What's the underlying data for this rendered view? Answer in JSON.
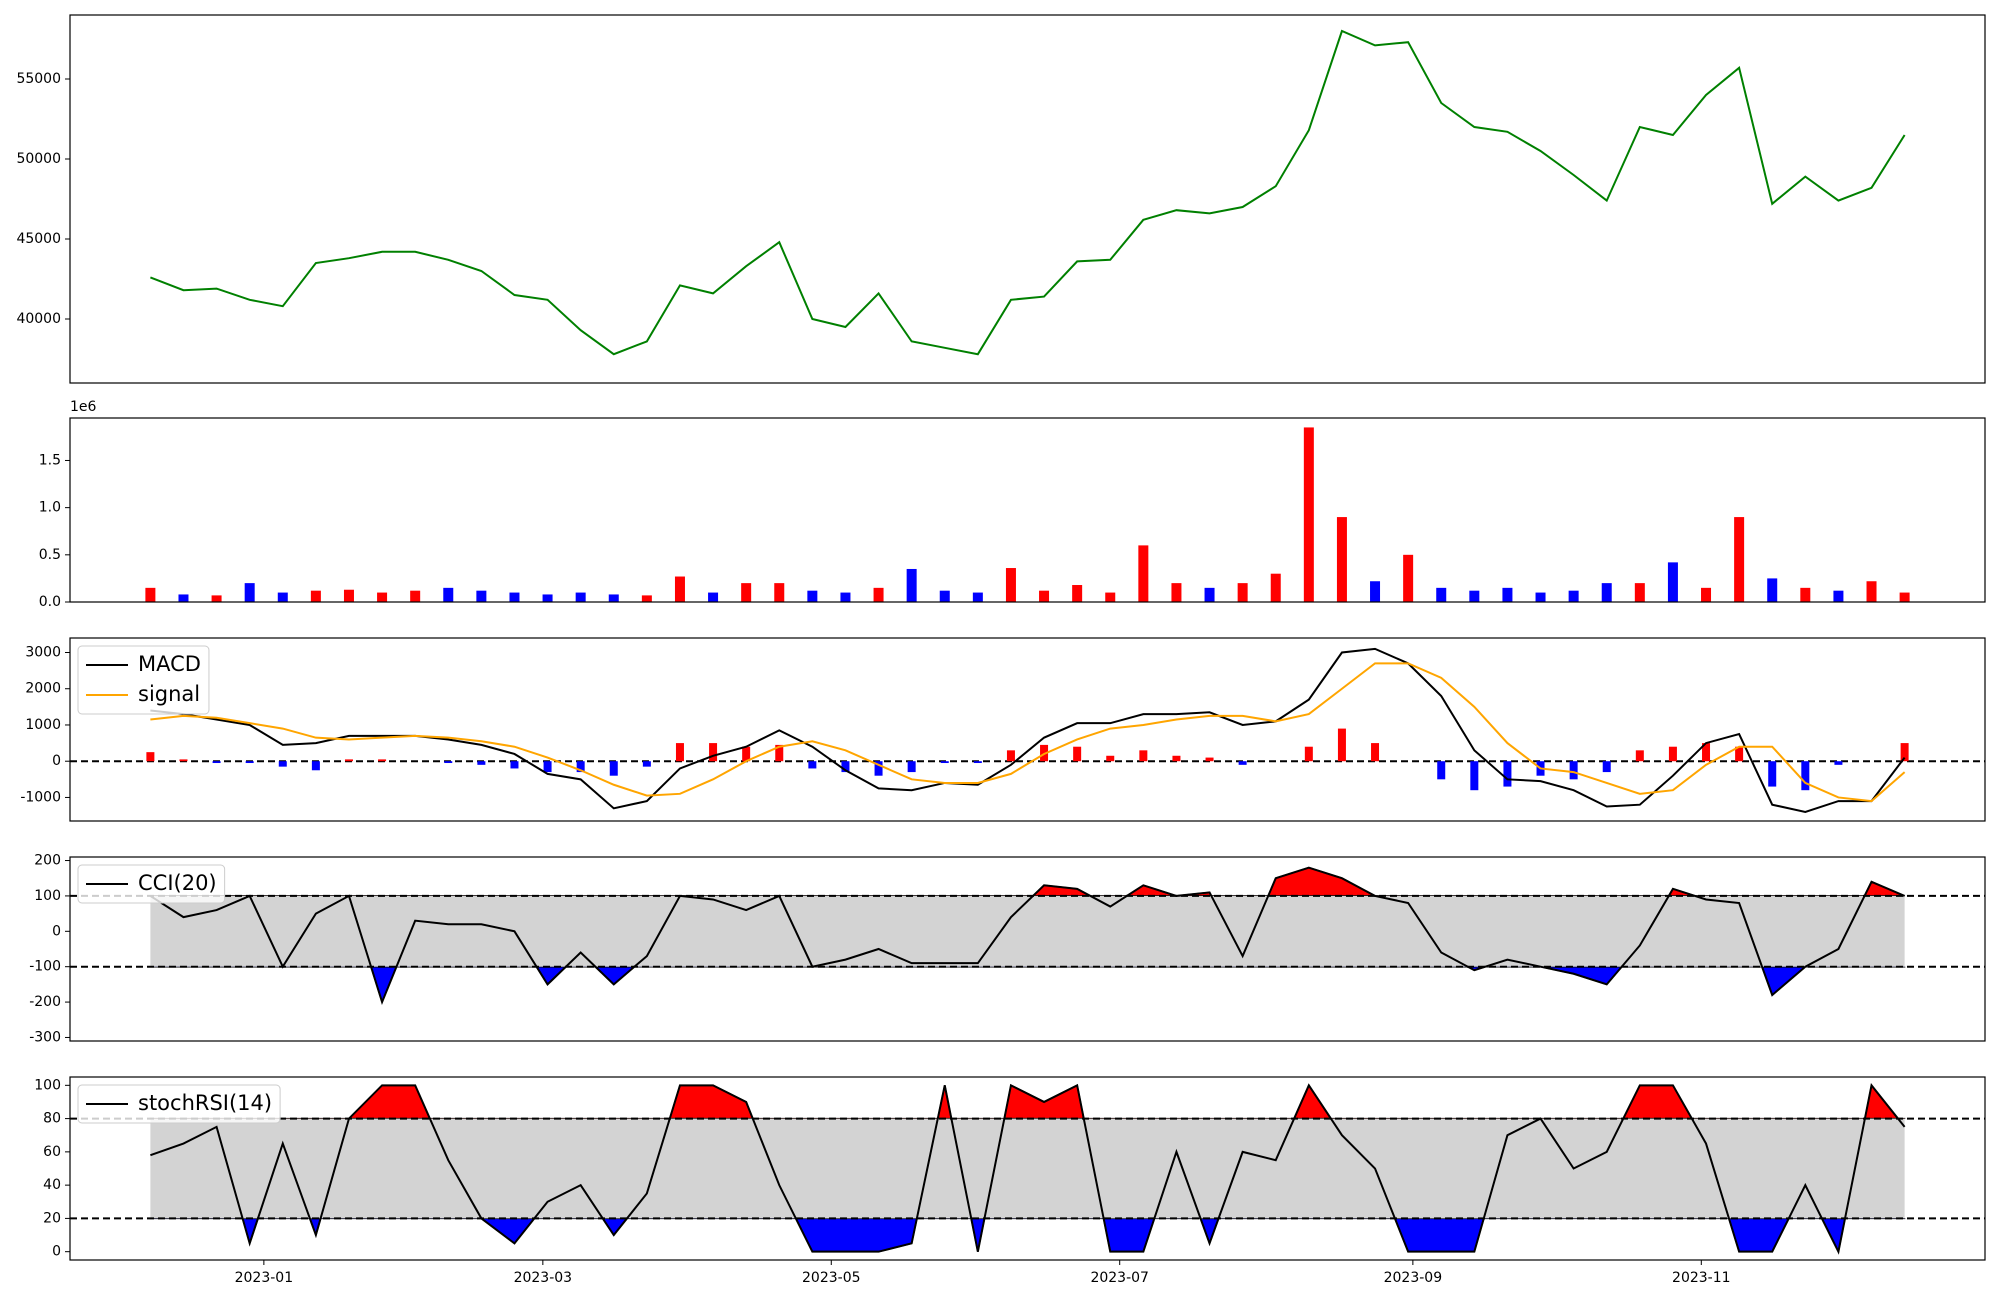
{
  "chart_data": [
    {
      "type": "line",
      "x": [
        "2022-12-08",
        "2022-12-15",
        "2022-12-22",
        "2022-12-29",
        "2023-01-05",
        "2023-01-12",
        "2023-01-19",
        "2023-01-26",
        "2023-02-02",
        "2023-02-09",
        "2023-02-16",
        "2023-02-23",
        "2023-03-02",
        "2023-03-09",
        "2023-03-16",
        "2023-03-23",
        "2023-03-30",
        "2023-04-06",
        "2023-04-13",
        "2023-04-20",
        "2023-04-27",
        "2023-05-04",
        "2023-05-11",
        "2023-05-18",
        "2023-05-25",
        "2023-06-01",
        "2023-06-08",
        "2023-06-15",
        "2023-06-22",
        "2023-06-29",
        "2023-07-06",
        "2023-07-13",
        "2023-07-20",
        "2023-07-27",
        "2023-08-03",
        "2023-08-10",
        "2023-08-17",
        "2023-08-24",
        "2023-08-31",
        "2023-09-07",
        "2023-09-14",
        "2023-09-21",
        "2023-09-28",
        "2023-10-05",
        "2023-10-12",
        "2023-10-19",
        "2023-10-26",
        "2023-11-02",
        "2023-11-09",
        "2023-11-16",
        "2023-11-23",
        "2023-11-30",
        "2023-12-07",
        "2023-12-14"
      ],
      "xlim": [
        "2022-11-21",
        "2023-12-31"
      ],
      "ylim": [
        36000,
        59000
      ],
      "yticks": [
        40000,
        45000,
        50000,
        55000
      ],
      "series": [
        {
          "color": "green",
          "values": [
            42600,
            41800,
            41900,
            41200,
            40800,
            43500,
            43800,
            44200,
            44200,
            43700,
            43000,
            41500,
            41200,
            39300,
            37800,
            38600,
            42100,
            41600,
            43300,
            44800,
            40000,
            39500,
            41600,
            38600,
            38200,
            37800,
            41200,
            41400,
            43600,
            43700,
            46200,
            46800,
            46600,
            47000,
            48300,
            51800,
            58000,
            57100,
            57300,
            53500,
            52000,
            51700,
            50500,
            49000,
            47400,
            52000,
            51500,
            54000,
            55700,
            47200,
            48900,
            47400,
            48200,
            51500
          ]
        }
      ]
    },
    {
      "type": "bar",
      "offset_label": "1e6",
      "up_color": "red",
      "down_color": "blue",
      "ylim": [
        0,
        1.95
      ],
      "yticks": [
        {
          "value": 0,
          "label": "0.0"
        },
        0.5,
        {
          "value": 1,
          "label": "1.0"
        },
        1.5
      ],
      "values": [
        0.15,
        0.08,
        0.07,
        0.2,
        0.1,
        0.12,
        0.13,
        0.1,
        0.12,
        0.15,
        0.12,
        0.1,
        0.08,
        0.1,
        0.08,
        0.07,
        0.27,
        0.1,
        0.2,
        0.2,
        0.12,
        0.1,
        0.15,
        0.35,
        0.12,
        0.1,
        0.36,
        0.12,
        0.18,
        0.1,
        0.6,
        0.2,
        0.15,
        0.2,
        0.3,
        1.85,
        0.9,
        0.22,
        0.5,
        0.15,
        0.12,
        0.15,
        0.1,
        0.12,
        0.2,
        0.2,
        0.42,
        0.15,
        0.9,
        0.25,
        0.15,
        0.12,
        0.22,
        0.1
      ]
    },
    {
      "type": "line",
      "legend": "upper left",
      "ylim": [
        -1650,
        3400
      ],
      "yticks": [
        -1000,
        0,
        1000,
        2000,
        3000
      ],
      "hlines": [
        0
      ],
      "series": [
        {
          "name": "MACD",
          "color": "black",
          "values": [
            1400,
            1300,
            1150,
            1000,
            450,
            500,
            700,
            700,
            700,
            600,
            450,
            200,
            -350,
            -500,
            -1300,
            -1100,
            -200,
            150,
            400,
            850,
            400,
            -250,
            -750,
            -800,
            -600,
            -650,
            -100,
            650,
            1050,
            1050,
            1300,
            1300,
            1350,
            1000,
            1100,
            1700,
            3000,
            3100,
            2700,
            1800,
            300,
            -500,
            -550,
            -800,
            -1250,
            -1200,
            -400,
            500,
            750,
            -1200,
            -1400,
            -1100,
            -1100,
            100
          ]
        },
        {
          "name": "signal",
          "color": "orange",
          "values": [
            1150,
            1250,
            1200,
            1050,
            900,
            650,
            600,
            650,
            700,
            650,
            550,
            400,
            100,
            -250,
            -650,
            -950,
            -900,
            -500,
            0,
            400,
            550,
            300,
            -100,
            -500,
            -600,
            -600,
            -350,
            200,
            600,
            900,
            1000,
            1150,
            1250,
            1250,
            1100,
            1300,
            2000,
            2700,
            2700,
            2300,
            1500,
            500,
            -200,
            -300,
            -600,
            -900,
            -800,
            -100,
            400,
            400,
            -600,
            -1000,
            -1100,
            -300
          ]
        }
      ],
      "histogram": {
        "up_color": "red",
        "down_color": "blue",
        "values": [
          250,
          50,
          -50,
          -50,
          -150,
          -250,
          50,
          50,
          0,
          -50,
          -100,
          -200,
          -300,
          -300,
          -400,
          -150,
          500,
          500,
          400,
          450,
          -200,
          -300,
          -400,
          -300,
          -50,
          -50,
          300,
          450,
          400,
          150,
          300,
          150,
          100,
          -100,
          0,
          400,
          900,
          500,
          0,
          -500,
          -800,
          -700,
          -400,
          -500,
          -300,
          300,
          400,
          500,
          400,
          -700,
          -800,
          -100,
          0,
          500
        ]
      }
    },
    {
      "type": "line",
      "legend": "upper left",
      "ylim": [
        -310,
        210
      ],
      "yticks": [
        -300,
        -200,
        -100,
        0,
        100,
        200
      ],
      "thresholds": [
        -100,
        100
      ],
      "band_color": "lightgray",
      "upper_color": "red",
      "lower_color": "blue",
      "series": [
        {
          "name": "CCI(20)",
          "color": "black",
          "values": [
            100,
            40,
            60,
            100,
            -100,
            50,
            100,
            -200,
            30,
            20,
            20,
            0,
            -150,
            -60,
            -150,
            -70,
            100,
            90,
            60,
            100,
            -100,
            -80,
            -50,
            -90,
            -90,
            -90,
            40,
            130,
            120,
            70,
            130,
            100,
            110,
            -70,
            150,
            180,
            150,
            100,
            80,
            -60,
            -110,
            -80,
            -100,
            -120,
            -150,
            -40,
            120,
            90,
            80,
            -180,
            -100,
            -50,
            140,
            100
          ]
        }
      ]
    },
    {
      "type": "line",
      "legend": "upper left",
      "ylim": [
        -5,
        105
      ],
      "yticks": [
        0,
        20,
        40,
        60,
        80,
        100
      ],
      "thresholds": [
        20,
        80
      ],
      "band_color": "lightgray",
      "upper_color": "red",
      "lower_color": "blue",
      "xticks": [
        "2023-01",
        "2023-03",
        "2023-05",
        "2023-07",
        "2023-09",
        "2023-11"
      ],
      "series": [
        {
          "name": "stochRSI(14)",
          "color": "black",
          "values": [
            58,
            65,
            75,
            5,
            65,
            10,
            80,
            100,
            100,
            55,
            20,
            5,
            30,
            40,
            10,
            35,
            100,
            100,
            90,
            40,
            0,
            0,
            0,
            5,
            100,
            0,
            100,
            90,
            100,
            0,
            0,
            60,
            5,
            60,
            55,
            100,
            70,
            50,
            0,
            0,
            0,
            70,
            80,
            50,
            60,
            100,
            100,
            65,
            0,
            0,
            40,
            0,
            100,
            75
          ]
        }
      ]
    }
  ]
}
